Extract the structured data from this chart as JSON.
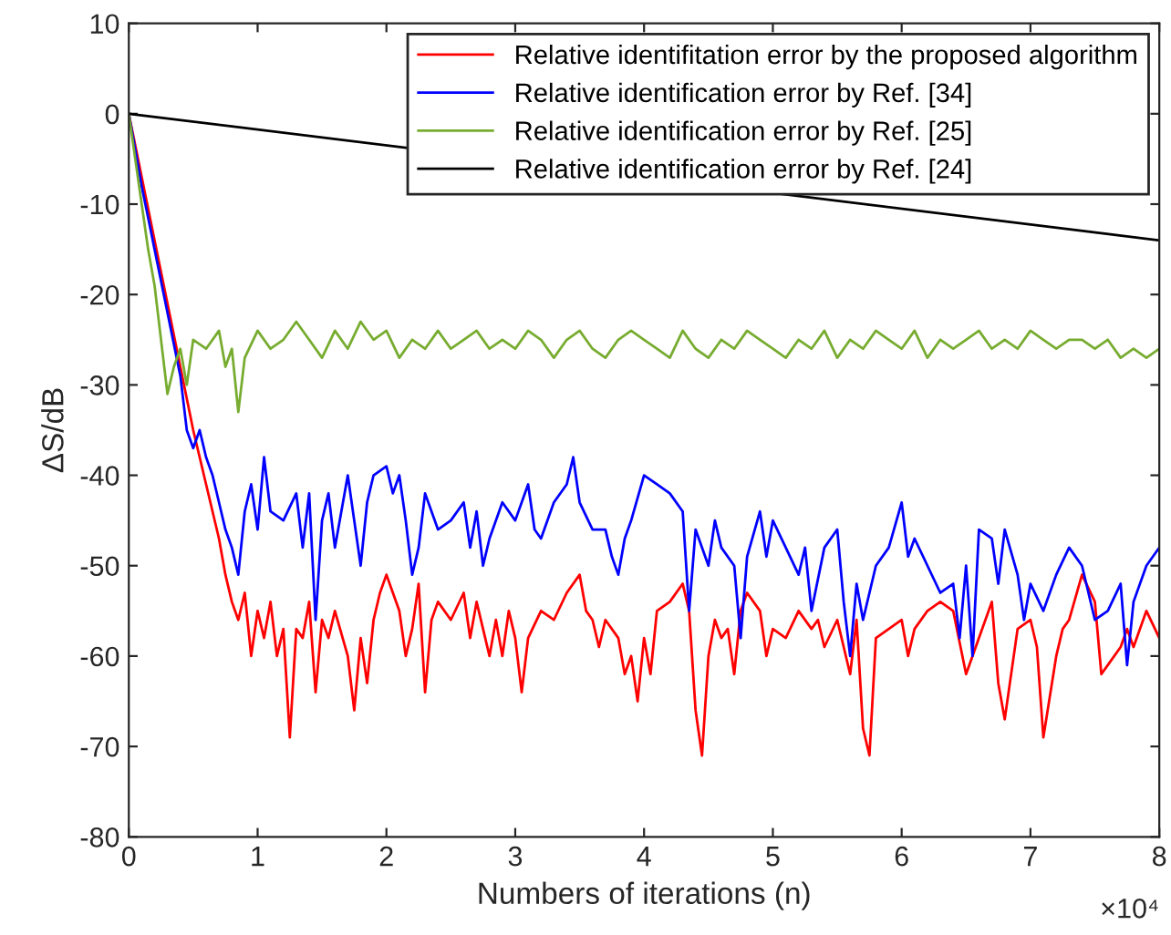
{
  "chart_data": {
    "type": "line",
    "xlabel": "Numbers of iterations (n)",
    "ylabel": "ΔS/dB",
    "xlim": [
      0,
      8
    ],
    "xticks": [
      0,
      1,
      2,
      3,
      4,
      5,
      6,
      7,
      8
    ],
    "ylim": [
      -80,
      10
    ],
    "yticks": [
      -80,
      -70,
      -60,
      -50,
      -40,
      -30,
      -20,
      -10,
      0,
      10
    ],
    "grid": false,
    "legend": "top right",
    "line_style": "solid",
    "marker": "none",
    "annotations": [
      "×10⁴"
    ],
    "series": [
      {
        "name": "Relative identifitation error by the proposed algorithm",
        "color": "#ff0000",
        "x": [
          0,
          0.1,
          0.2,
          0.3,
          0.4,
          0.5,
          0.6,
          0.7,
          0.75,
          0.8,
          0.85,
          0.9,
          0.95,
          1.0,
          1.05,
          1.1,
          1.15,
          1.2,
          1.25,
          1.3,
          1.35,
          1.4,
          1.45,
          1.5,
          1.55,
          1.6,
          1.7,
          1.75,
          1.8,
          1.85,
          1.9,
          1.95,
          2.0,
          2.05,
          2.1,
          2.15,
          2.2,
          2.25,
          2.3,
          2.35,
          2.4,
          2.5,
          2.6,
          2.65,
          2.7,
          2.8,
          2.85,
          2.9,
          2.95,
          3.0,
          3.05,
          3.1,
          3.2,
          3.3,
          3.4,
          3.5,
          3.55,
          3.6,
          3.65,
          3.7,
          3.8,
          3.85,
          3.9,
          3.95,
          4.0,
          4.05,
          4.1,
          4.2,
          4.3,
          4.35,
          4.4,
          4.45,
          4.5,
          4.55,
          4.6,
          4.65,
          4.7,
          4.75,
          4.8,
          4.9,
          4.95,
          5.0,
          5.1,
          5.2,
          5.3,
          5.35,
          5.4,
          5.5,
          5.6,
          5.65,
          5.7,
          5.75,
          5.8,
          5.9,
          6.0,
          6.05,
          6.1,
          6.2,
          6.3,
          6.4,
          6.5,
          6.55,
          6.6,
          6.65,
          6.7,
          6.75,
          6.8,
          6.9,
          7.0,
          7.05,
          7.1,
          7.2,
          7.25,
          7.3,
          7.4,
          7.5,
          7.55,
          7.6,
          7.7,
          7.75,
          7.8,
          7.9,
          8.0
        ],
        "values": [
          0,
          -7,
          -14,
          -21,
          -28,
          -35,
          -41,
          -47,
          -51,
          -54,
          -56,
          -53,
          -60,
          -55,
          -58,
          -54,
          -60,
          -57,
          -69,
          -57,
          -58,
          -54,
          -64,
          -56,
          -58,
          -55,
          -60,
          -66,
          -58,
          -63,
          -56,
          -53,
          -51,
          -53,
          -55,
          -60,
          -57,
          -52,
          -64,
          -56,
          -54,
          -56,
          -53,
          -58,
          -54,
          -60,
          -56,
          -60,
          -55,
          -58,
          -64,
          -58,
          -55,
          -56,
          -53,
          -51,
          -55,
          -56,
          -59,
          -56,
          -58,
          -62,
          -60,
          -65,
          -58,
          -62,
          -55,
          -54,
          -52,
          -55,
          -66,
          -71,
          -60,
          -56,
          -58,
          -57,
          -62,
          -55,
          -53,
          -55,
          -60,
          -57,
          -58,
          -55,
          -57,
          -56,
          -59,
          -56,
          -62,
          -56,
          -68,
          -71,
          -58,
          -57,
          -56,
          -60,
          -57,
          -55,
          -54,
          -55,
          -62,
          -60,
          -58,
          -56,
          -54,
          -63,
          -67,
          -57,
          -56,
          -59,
          -69,
          -60,
          -57,
          -56,
          -51,
          -54,
          -62,
          -61,
          -59,
          -57,
          -59,
          -55,
          -58
        ]
      },
      {
        "name": "Relative identification error by Ref. [34]",
        "color": "#0000ff",
        "x": [
          0,
          0.1,
          0.2,
          0.3,
          0.4,
          0.45,
          0.5,
          0.55,
          0.6,
          0.65,
          0.7,
          0.75,
          0.8,
          0.85,
          0.9,
          0.95,
          1.0,
          1.05,
          1.1,
          1.2,
          1.3,
          1.35,
          1.4,
          1.45,
          1.5,
          1.55,
          1.6,
          1.7,
          1.75,
          1.8,
          1.85,
          1.9,
          2.0,
          2.05,
          2.1,
          2.15,
          2.2,
          2.25,
          2.3,
          2.4,
          2.5,
          2.6,
          2.65,
          2.7,
          2.75,
          2.8,
          2.9,
          3.0,
          3.1,
          3.15,
          3.2,
          3.3,
          3.4,
          3.45,
          3.5,
          3.6,
          3.7,
          3.75,
          3.8,
          3.85,
          3.9,
          4.0,
          4.1,
          4.2,
          4.3,
          4.35,
          4.4,
          4.5,
          4.55,
          4.6,
          4.7,
          4.75,
          4.8,
          4.9,
          4.95,
          5.0,
          5.1,
          5.2,
          5.25,
          5.3,
          5.4,
          5.5,
          5.55,
          5.6,
          5.65,
          5.7,
          5.8,
          5.9,
          6.0,
          6.05,
          6.1,
          6.2,
          6.3,
          6.4,
          6.45,
          6.5,
          6.55,
          6.6,
          6.7,
          6.75,
          6.8,
          6.9,
          6.95,
          7.0,
          7.1,
          7.2,
          7.3,
          7.4,
          7.5,
          7.6,
          7.7,
          7.75,
          7.8,
          7.9,
          8.0
        ],
        "values": [
          0,
          -8,
          -15,
          -22,
          -29,
          -35,
          -37,
          -35,
          -38,
          -40,
          -43,
          -46,
          -48,
          -51,
          -44,
          -41,
          -46,
          -38,
          -44,
          -45,
          -42,
          -48,
          -42,
          -56,
          -45,
          -42,
          -48,
          -40,
          -45,
          -50,
          -43,
          -40,
          -39,
          -42,
          -40,
          -45,
          -51,
          -48,
          -42,
          -46,
          -45,
          -43,
          -48,
          -44,
          -50,
          -47,
          -43,
          -45,
          -41,
          -46,
          -47,
          -43,
          -41,
          -38,
          -43,
          -46,
          -46,
          -49,
          -51,
          -47,
          -45,
          -40,
          -41,
          -42,
          -44,
          -55,
          -46,
          -50,
          -45,
          -48,
          -50,
          -58,
          -49,
          -44,
          -49,
          -45,
          -48,
          -51,
          -48,
          -55,
          -48,
          -46,
          -54,
          -60,
          -52,
          -56,
          -50,
          -48,
          -43,
          -49,
          -47,
          -50,
          -53,
          -52,
          -58,
          -50,
          -60,
          -46,
          -47,
          -52,
          -46,
          -51,
          -56,
          -52,
          -55,
          -51,
          -48,
          -50,
          -56,
          -55,
          -52,
          -61,
          -54,
          -50,
          -48
        ]
      },
      {
        "name": "Relative identification error by Ref. [25]",
        "color": "#77ac30",
        "x": [
          0,
          0.05,
          0.1,
          0.15,
          0.2,
          0.25,
          0.3,
          0.35,
          0.4,
          0.45,
          0.5,
          0.6,
          0.7,
          0.75,
          0.8,
          0.85,
          0.9,
          1.0,
          1.1,
          1.2,
          1.3,
          1.4,
          1.5,
          1.6,
          1.7,
          1.8,
          1.9,
          2.0,
          2.1,
          2.2,
          2.3,
          2.4,
          2.5,
          2.6,
          2.7,
          2.8,
          2.9,
          3.0,
          3.1,
          3.2,
          3.3,
          3.4,
          3.5,
          3.6,
          3.7,
          3.8,
          3.9,
          4.0,
          4.1,
          4.2,
          4.3,
          4.4,
          4.5,
          4.6,
          4.7,
          4.8,
          4.9,
          5.0,
          5.1,
          5.2,
          5.3,
          5.4,
          5.5,
          5.6,
          5.7,
          5.8,
          5.9,
          6.0,
          6.1,
          6.2,
          6.3,
          6.4,
          6.5,
          6.6,
          6.7,
          6.8,
          6.9,
          7.0,
          7.1,
          7.2,
          7.3,
          7.4,
          7.5,
          7.6,
          7.7,
          7.8,
          7.9,
          8.0
        ],
        "values": [
          0,
          -5,
          -10,
          -15,
          -19,
          -25,
          -31,
          -28,
          -26,
          -30,
          -25,
          -26,
          -24,
          -28,
          -26,
          -33,
          -27,
          -24,
          -26,
          -25,
          -23,
          -25,
          -27,
          -24,
          -26,
          -23,
          -25,
          -24,
          -27,
          -25,
          -26,
          -24,
          -26,
          -25,
          -24,
          -26,
          -25,
          -26,
          -24,
          -25,
          -27,
          -25,
          -24,
          -26,
          -27,
          -25,
          -24,
          -25,
          -26,
          -27,
          -24,
          -26,
          -27,
          -25,
          -26,
          -24,
          -25,
          -26,
          -27,
          -25,
          -26,
          -24,
          -27,
          -25,
          -26,
          -24,
          -25,
          -26,
          -24,
          -27,
          -25,
          -26,
          -25,
          -24,
          -26,
          -25,
          -26,
          -24,
          -25,
          -26,
          -25,
          -25,
          -26,
          -25,
          -27,
          -26,
          -27,
          -26
        ]
      },
      {
        "name": "Relative identification error by Ref. [24]",
        "color": "#000000",
        "x": [
          0,
          8
        ],
        "values": [
          0,
          -14
        ]
      }
    ]
  }
}
